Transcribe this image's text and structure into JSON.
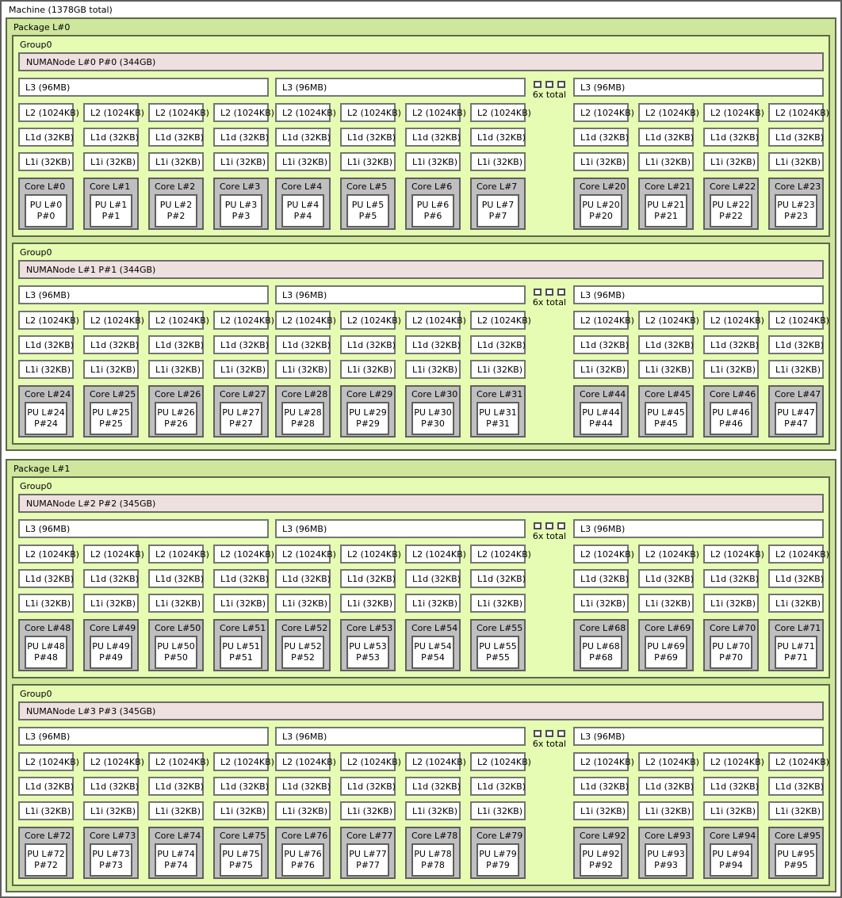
{
  "machine": {
    "label": "Machine (1378GB total)"
  },
  "overflow_badge": {
    "label": "6x total",
    "squares": 3
  },
  "cache_labels": {
    "l3": "L3 (96MB)",
    "l2": "L2 (1024KB)",
    "l1d": "L1d (32KB)",
    "l1i": "L1i (32KB)"
  },
  "colors": {
    "package_bg": "#cfe69d",
    "group_bg": "#e6fcb3",
    "numanode_bg": "#efe0e0",
    "core_bg": "#bfbfbf",
    "frame_border": "#5c6847",
    "machine_border": "#5e5e5e",
    "numa_border": "#6b6b6b",
    "cache_border": "#747474",
    "core_border": "#5f5f5f"
  },
  "packages": [
    {
      "label": "Package L#0",
      "groups": [
        {
          "label": "Group0",
          "numanode": "NUMANode L#0 P#0 (344GB)",
          "clusters": [
            [
              {
                "core": "Core L#0",
                "pu": "PU L#0",
                "p": "P#0"
              },
              {
                "core": "Core L#1",
                "pu": "PU L#1",
                "p": "P#1"
              },
              {
                "core": "Core L#2",
                "pu": "PU L#2",
                "p": "P#2"
              },
              {
                "core": "Core L#3",
                "pu": "PU L#3",
                "p": "P#3"
              }
            ],
            [
              {
                "core": "Core L#4",
                "pu": "PU L#4",
                "p": "P#4"
              },
              {
                "core": "Core L#5",
                "pu": "PU L#5",
                "p": "P#5"
              },
              {
                "core": "Core L#6",
                "pu": "PU L#6",
                "p": "P#6"
              },
              {
                "core": "Core L#7",
                "pu": "PU L#7",
                "p": "P#7"
              }
            ],
            [
              {
                "core": "Core L#20",
                "pu": "PU L#20",
                "p": "P#20"
              },
              {
                "core": "Core L#21",
                "pu": "PU L#21",
                "p": "P#21"
              },
              {
                "core": "Core L#22",
                "pu": "PU L#22",
                "p": "P#22"
              },
              {
                "core": "Core L#23",
                "pu": "PU L#23",
                "p": "P#23"
              }
            ]
          ]
        },
        {
          "label": "Group0",
          "numanode": "NUMANode L#1 P#1 (344GB)",
          "clusters": [
            [
              {
                "core": "Core L#24",
                "pu": "PU L#24",
                "p": "P#24"
              },
              {
                "core": "Core L#25",
                "pu": "PU L#25",
                "p": "P#25"
              },
              {
                "core": "Core L#26",
                "pu": "PU L#26",
                "p": "P#26"
              },
              {
                "core": "Core L#27",
                "pu": "PU L#27",
                "p": "P#27"
              }
            ],
            [
              {
                "core": "Core L#28",
                "pu": "PU L#28",
                "p": "P#28"
              },
              {
                "core": "Core L#29",
                "pu": "PU L#29",
                "p": "P#29"
              },
              {
                "core": "Core L#30",
                "pu": "PU L#30",
                "p": "P#30"
              },
              {
                "core": "Core L#31",
                "pu": "PU L#31",
                "p": "P#31"
              }
            ],
            [
              {
                "core": "Core L#44",
                "pu": "PU L#44",
                "p": "P#44"
              },
              {
                "core": "Core L#45",
                "pu": "PU L#45",
                "p": "P#45"
              },
              {
                "core": "Core L#46",
                "pu": "PU L#46",
                "p": "P#46"
              },
              {
                "core": "Core L#47",
                "pu": "PU L#47",
                "p": "P#47"
              }
            ]
          ]
        }
      ]
    },
    {
      "label": "Package L#1",
      "groups": [
        {
          "label": "Group0",
          "numanode": "NUMANode L#2 P#2 (345GB)",
          "clusters": [
            [
              {
                "core": "Core L#48",
                "pu": "PU L#48",
                "p": "P#48"
              },
              {
                "core": "Core L#49",
                "pu": "PU L#49",
                "p": "P#49"
              },
              {
                "core": "Core L#50",
                "pu": "PU L#50",
                "p": "P#50"
              },
              {
                "core": "Core L#51",
                "pu": "PU L#51",
                "p": "P#51"
              }
            ],
            [
              {
                "core": "Core L#52",
                "pu": "PU L#52",
                "p": "P#52"
              },
              {
                "core": "Core L#53",
                "pu": "PU L#53",
                "p": "P#53"
              },
              {
                "core": "Core L#54",
                "pu": "PU L#54",
                "p": "P#54"
              },
              {
                "core": "Core L#55",
                "pu": "PU L#55",
                "p": "P#55"
              }
            ],
            [
              {
                "core": "Core L#68",
                "pu": "PU L#68",
                "p": "P#68"
              },
              {
                "core": "Core L#69",
                "pu": "PU L#69",
                "p": "P#69"
              },
              {
                "core": "Core L#70",
                "pu": "PU L#70",
                "p": "P#70"
              },
              {
                "core": "Core L#71",
                "pu": "PU L#71",
                "p": "P#71"
              }
            ]
          ]
        },
        {
          "label": "Group0",
          "numanode": "NUMANode L#3 P#3 (345GB)",
          "clusters": [
            [
              {
                "core": "Core L#72",
                "pu": "PU L#72",
                "p": "P#72"
              },
              {
                "core": "Core L#73",
                "pu": "PU L#73",
                "p": "P#73"
              },
              {
                "core": "Core L#74",
                "pu": "PU L#74",
                "p": "P#74"
              },
              {
                "core": "Core L#75",
                "pu": "PU L#75",
                "p": "P#75"
              }
            ],
            [
              {
                "core": "Core L#76",
                "pu": "PU L#76",
                "p": "P#76"
              },
              {
                "core": "Core L#77",
                "pu": "PU L#77",
                "p": "P#77"
              },
              {
                "core": "Core L#78",
                "pu": "PU L#78",
                "p": "P#78"
              },
              {
                "core": "Core L#79",
                "pu": "PU L#79",
                "p": "P#79"
              }
            ],
            [
              {
                "core": "Core L#92",
                "pu": "PU L#92",
                "p": "P#92"
              },
              {
                "core": "Core L#93",
                "pu": "PU L#93",
                "p": "P#93"
              },
              {
                "core": "Core L#94",
                "pu": "PU L#94",
                "p": "P#94"
              },
              {
                "core": "Core L#95",
                "pu": "PU L#95",
                "p": "P#95"
              }
            ]
          ]
        }
      ]
    }
  ]
}
